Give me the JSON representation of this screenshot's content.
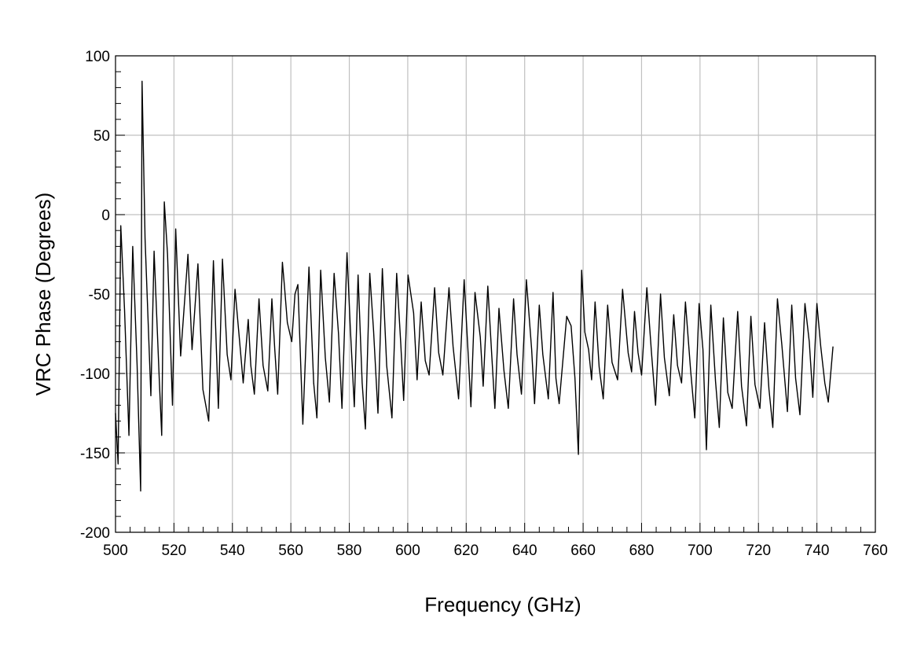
{
  "chart_data": {
    "type": "line",
    "title": "",
    "xlabel": "Frequency (GHz)",
    "ylabel": "VRC Phase (Degrees)",
    "xlim": [
      500,
      760
    ],
    "ylim": [
      -200,
      100
    ],
    "x_ticks": [
      500,
      520,
      540,
      560,
      580,
      600,
      620,
      640,
      660,
      680,
      700,
      720,
      740,
      760
    ],
    "y_ticks": [
      100,
      50,
      0,
      -50,
      -100,
      -150,
      -200
    ],
    "x_tick_labels": [
      "500",
      "520",
      "540",
      "560",
      "580",
      "600",
      "620",
      "640",
      "660",
      "680",
      "700",
      "720",
      "740",
      "760"
    ],
    "y_tick_labels": [
      "100",
      "50",
      "0",
      "-50",
      "-100",
      "-150",
      "-200"
    ],
    "grid": true,
    "line_color": "#000000",
    "grid_color": "#c0c0c0",
    "series": [
      {
        "name": "",
        "points": [
          [
            500,
            -125
          ],
          [
            500.9,
            -157
          ],
          [
            501.8,
            -7
          ],
          [
            503.1,
            -60
          ],
          [
            504.6,
            -139
          ],
          [
            505.9,
            -20
          ],
          [
            507.4,
            -95
          ],
          [
            508.6,
            -174
          ],
          [
            509.1,
            84
          ],
          [
            510.1,
            -15
          ],
          [
            512.1,
            -114
          ],
          [
            513.2,
            -23
          ],
          [
            515.0,
            -105
          ],
          [
            515.8,
            -139
          ],
          [
            516.7,
            8
          ],
          [
            517.8,
            -25
          ],
          [
            519.5,
            -120
          ],
          [
            520.6,
            -9
          ],
          [
            522.3,
            -89
          ],
          [
            524.8,
            -25
          ],
          [
            526.2,
            -85
          ],
          [
            528.2,
            -31
          ],
          [
            529.9,
            -110
          ],
          [
            531.9,
            -130
          ],
          [
            533.5,
            -29
          ],
          [
            535.2,
            -122
          ],
          [
            536.6,
            -28
          ],
          [
            538.2,
            -88
          ],
          [
            539.5,
            -104
          ],
          [
            540.9,
            -47
          ],
          [
            542.8,
            -87
          ],
          [
            543.7,
            -106
          ],
          [
            545.4,
            -66
          ],
          [
            546.3,
            -95
          ],
          [
            547.5,
            -113
          ],
          [
            549.1,
            -53
          ],
          [
            550.5,
            -95
          ],
          [
            552.1,
            -111
          ],
          [
            553.5,
            -53
          ],
          [
            554.5,
            -85
          ],
          [
            555.5,
            -113
          ],
          [
            557.1,
            -30
          ],
          [
            557.8,
            -45
          ],
          [
            558.8,
            -68
          ],
          [
            560.3,
            -80
          ],
          [
            561.4,
            -50
          ],
          [
            562.4,
            -44
          ],
          [
            564.1,
            -132
          ],
          [
            566.2,
            -33
          ],
          [
            567.8,
            -106
          ],
          [
            568.9,
            -128
          ],
          [
            570.2,
            -35
          ],
          [
            571.8,
            -90
          ],
          [
            573.2,
            -118
          ],
          [
            574.8,
            -37
          ],
          [
            576.3,
            -75
          ],
          [
            577.5,
            -122
          ],
          [
            579.2,
            -24
          ],
          [
            580.3,
            -70
          ],
          [
            581.7,
            -121
          ],
          [
            583.0,
            -38
          ],
          [
            584.4,
            -106
          ],
          [
            585.5,
            -135
          ],
          [
            587.0,
            -37
          ],
          [
            588.3,
            -73
          ],
          [
            589.8,
            -125
          ],
          [
            591.3,
            -34
          ],
          [
            592.8,
            -95
          ],
          [
            594.6,
            -128
          ],
          [
            596.2,
            -37
          ],
          [
            597.6,
            -81
          ],
          [
            598.6,
            -117
          ],
          [
            600.1,
            -38
          ],
          [
            602.0,
            -62
          ],
          [
            603.2,
            -104
          ],
          [
            604.6,
            -55
          ],
          [
            606.0,
            -92
          ],
          [
            607.3,
            -101
          ],
          [
            609.2,
            -46
          ],
          [
            610.6,
            -87
          ],
          [
            612.0,
            -101
          ],
          [
            614.1,
            -46
          ],
          [
            615.5,
            -83
          ],
          [
            617.4,
            -116
          ],
          [
            619.3,
            -41
          ],
          [
            620.6,
            -85
          ],
          [
            621.6,
            -121
          ],
          [
            623.0,
            -49
          ],
          [
            624.8,
            -77
          ],
          [
            625.8,
            -108
          ],
          [
            627.4,
            -45
          ],
          [
            628.8,
            -90
          ],
          [
            629.8,
            -122
          ],
          [
            631.2,
            -59
          ],
          [
            632.9,
            -98
          ],
          [
            634.4,
            -122
          ],
          [
            636.2,
            -53
          ],
          [
            637.4,
            -88
          ],
          [
            638.9,
            -113
          ],
          [
            640.6,
            -41
          ],
          [
            642.4,
            -85
          ],
          [
            643.4,
            -119
          ],
          [
            645.0,
            -57
          ],
          [
            646.2,
            -88
          ],
          [
            648.1,
            -116
          ],
          [
            649.7,
            -49
          ],
          [
            650.7,
            -103
          ],
          [
            651.8,
            -119
          ],
          [
            654.4,
            -64
          ],
          [
            655.9,
            -70
          ],
          [
            657.2,
            -103
          ],
          [
            658.4,
            -151
          ],
          [
            659.5,
            -35
          ],
          [
            660.6,
            -74
          ],
          [
            661.9,
            -85
          ],
          [
            662.9,
            -104
          ],
          [
            664.1,
            -55
          ],
          [
            665.5,
            -96
          ],
          [
            666.9,
            -116
          ],
          [
            668.4,
            -57
          ],
          [
            669.9,
            -93
          ],
          [
            671.8,
            -104
          ],
          [
            673.5,
            -47
          ],
          [
            675.4,
            -87
          ],
          [
            676.6,
            -99
          ],
          [
            677.6,
            -61
          ],
          [
            678.8,
            -87
          ],
          [
            680.0,
            -101
          ],
          [
            681.8,
            -46
          ],
          [
            683.4,
            -87
          ],
          [
            684.8,
            -120
          ],
          [
            686.5,
            -50
          ],
          [
            687.8,
            -90
          ],
          [
            689.5,
            -114
          ],
          [
            691.0,
            -63
          ],
          [
            692.3,
            -95
          ],
          [
            693.7,
            -106
          ],
          [
            695.0,
            -55
          ],
          [
            696.8,
            -98
          ],
          [
            698.2,
            -128
          ],
          [
            699.7,
            -56
          ],
          [
            701.0,
            -85
          ],
          [
            702.2,
            -148
          ],
          [
            703.7,
            -57
          ],
          [
            705.3,
            -105
          ],
          [
            706.6,
            -134
          ],
          [
            708.0,
            -65
          ],
          [
            709.5,
            -112
          ],
          [
            711.0,
            -122
          ],
          [
            712.9,
            -61
          ],
          [
            714.2,
            -108
          ],
          [
            715.9,
            -133
          ],
          [
            717.4,
            -64
          ],
          [
            718.8,
            -107
          ],
          [
            720.5,
            -122
          ],
          [
            722.1,
            -68
          ],
          [
            723.6,
            -110
          ],
          [
            724.9,
            -134
          ],
          [
            726.5,
            -53
          ],
          [
            728.0,
            -82
          ],
          [
            729.9,
            -124
          ],
          [
            731.4,
            -57
          ],
          [
            732.7,
            -103
          ],
          [
            734.2,
            -126
          ],
          [
            735.9,
            -56
          ],
          [
            737.4,
            -80
          ],
          [
            738.6,
            -115
          ],
          [
            740.0,
            -56
          ],
          [
            741.3,
            -83
          ],
          [
            742.7,
            -106
          ],
          [
            743.9,
            -118
          ],
          [
            745.5,
            -83
          ]
        ]
      }
    ]
  }
}
